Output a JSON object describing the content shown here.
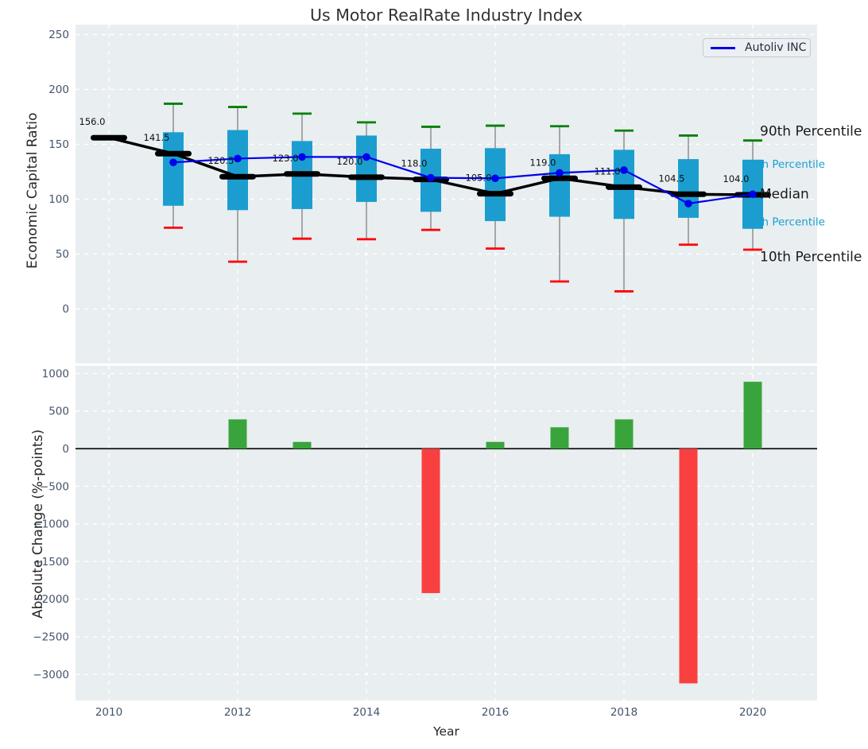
{
  "title": "Us Motor RealRate Industry Index",
  "legend": {
    "label": "Autoliv INC"
  },
  "axes": {
    "top_ylabel": "Economic Capital Ratio",
    "bottom_ylabel": "Absolute Change (%-points)",
    "xlabel": "Year"
  },
  "colors": {
    "panel_bg": "#e9eef1",
    "grid": "#ffffff",
    "box_fill": "#1b9ecf",
    "whisker": "#888888",
    "p90_cap": "#008000",
    "p10_cap": "#ff0000",
    "median": "#000000",
    "company_line": "#0000ee",
    "bar_positive": "#3aa43c",
    "bar_negative": "#f94040",
    "tick_text": "#44546b",
    "annotation_black": "#1a1a1a",
    "annotation_cyan": "#1b9ecf",
    "zero_line": "#000000"
  },
  "chart_data": [
    {
      "type": "boxplot+line",
      "panel": "top",
      "title": "Us Motor RealRate Industry Index",
      "ylabel": "Economic Capital Ratio",
      "yticks": [
        250,
        200,
        150,
        100,
        50,
        0
      ],
      "ylim": [
        -50,
        259
      ],
      "xticks": [
        2010,
        2012,
        2014,
        2016,
        2018,
        2020
      ],
      "grid": true,
      "boxes": [
        {
          "year": 2010,
          "p10": null,
          "p25": null,
          "median": 156.0,
          "p75": null,
          "p90": null
        },
        {
          "year": 2011,
          "p10": 74,
          "p25": 94,
          "median": 141.5,
          "p75": 161,
          "p90": 187
        },
        {
          "year": 2012,
          "p10": 43,
          "p25": 90,
          "median": 120.5,
          "p75": 163,
          "p90": 184
        },
        {
          "year": 2013,
          "p10": 64,
          "p25": 91,
          "median": 123.0,
          "p75": 153,
          "p90": 178
        },
        {
          "year": 2014,
          "p10": 63.5,
          "p25": 97.5,
          "median": 120.0,
          "p75": 158,
          "p90": 170
        },
        {
          "year": 2015,
          "p10": 72,
          "p25": 88.5,
          "median": 118.0,
          "p75": 146,
          "p90": 166
        },
        {
          "year": 2016,
          "p10": 55,
          "p25": 80,
          "median": 105.0,
          "p75": 146.5,
          "p90": 167
        },
        {
          "year": 2017,
          "p10": 25,
          "p25": 84,
          "median": 119.0,
          "p75": 141,
          "p90": 166.5
        },
        {
          "year": 2018,
          "p10": 16,
          "p25": 82,
          "median": 111.0,
          "p75": 145,
          "p90": 162.5
        },
        {
          "year": 2019,
          "p10": 58.5,
          "p25": 83,
          "median": 104.5,
          "p75": 136.5,
          "p90": 158
        },
        {
          "year": 2020,
          "p10": 54,
          "p25": 73,
          "median": 104.0,
          "p75": 136,
          "p90": 153.5
        }
      ],
      "median_labels": [
        "156.0",
        "141.5",
        "120.5",
        "123.0",
        "120.0",
        "118.0",
        "105.0",
        "119.0",
        "111.0",
        "104.5",
        "104.0"
      ],
      "series": [
        {
          "name": "Autoliv INC",
          "x": [
            2011,
            2012,
            2013,
            2014,
            2015,
            2016,
            2017,
            2018,
            2019,
            2020
          ],
          "y": [
            133.5,
            137,
            138.5,
            138.5,
            119.5,
            119,
            124,
            126.5,
            96,
            104.5
          ]
        }
      ],
      "right_annotations": [
        {
          "text": "90th Percentile",
          "value": 162.5,
          "style": "black"
        },
        {
          "text": "75th Percentile",
          "value": 132,
          "style": "cyan"
        },
        {
          "text": "Median",
          "value": 105,
          "style": "black"
        },
        {
          "text": "25th Percentile",
          "value": 79.5,
          "style": "cyan"
        },
        {
          "text": "10th Percentile",
          "value": 48,
          "style": "black"
        }
      ],
      "legend_position": "upper right"
    },
    {
      "type": "bar",
      "panel": "bottom",
      "ylabel": "Absolute Change (%-points)",
      "xlabel": "Year",
      "yticks": [
        1000,
        500,
        0,
        -500,
        -1000,
        -1500,
        -2000,
        -2500,
        -3000
      ],
      "ylim": [
        -3350,
        1100
      ],
      "xticks": [
        2010,
        2012,
        2014,
        2016,
        2018,
        2020
      ],
      "grid": true,
      "bars": [
        {
          "year": 2012,
          "value": 390
        },
        {
          "year": 2013,
          "value": 90
        },
        {
          "year": 2015,
          "value": -1920
        },
        {
          "year": 2016,
          "value": 90
        },
        {
          "year": 2017,
          "value": 285
        },
        {
          "year": 2018,
          "value": 390
        },
        {
          "year": 2019,
          "value": -3120
        },
        {
          "year": 2020,
          "value": 890
        }
      ]
    }
  ]
}
